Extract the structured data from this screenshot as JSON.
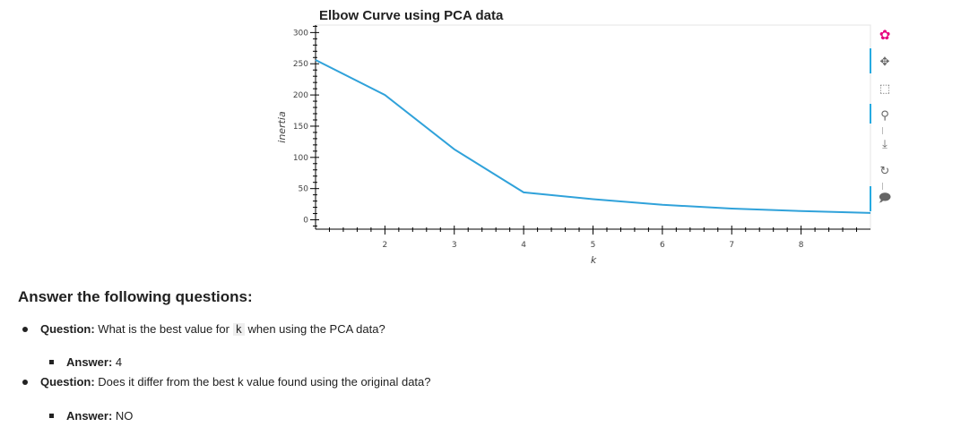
{
  "chart_data": {
    "type": "line",
    "title": "Elbow Curve using PCA data",
    "xlabel": "k",
    "ylabel": "inertia",
    "x": [
      1,
      2,
      3,
      4,
      5,
      6,
      7,
      8,
      9
    ],
    "y": [
      256,
      200,
      113,
      44,
      33,
      24,
      18,
      14,
      11
    ],
    "xlim": [
      1,
      9
    ],
    "ylim": [
      -15,
      312
    ],
    "x_ticks": [
      2,
      3,
      4,
      5,
      6,
      7,
      8
    ],
    "y_ticks": [
      0,
      50,
      100,
      150,
      200,
      250,
      300
    ],
    "grid": false,
    "line_color": "#30a2da"
  },
  "toolbar": {
    "tools": [
      {
        "name": "bokeh-logo-icon",
        "glyph": "✿"
      },
      {
        "name": "pan-icon",
        "glyph": "✥"
      },
      {
        "name": "box-zoom-icon",
        "glyph": "⬚"
      },
      {
        "name": "wheel-zoom-icon",
        "glyph": "⚲"
      },
      {
        "name": "save-icon",
        "glyph": "⤓"
      },
      {
        "name": "reset-icon",
        "glyph": "↻"
      },
      {
        "name": "hover-icon",
        "glyph": "🗩"
      }
    ]
  },
  "markdown": {
    "heading": "Answer the following questions:",
    "q1_label": "Question:",
    "q1_text_before": "What is the best value for",
    "q1_code": "k",
    "q1_text_after": "when using the PCA data?",
    "a1_label": "Answer:",
    "a1_value": "4",
    "q2_label": "Question:",
    "q2_text": "Does it differ from the best k value found using the original data?",
    "a2_label": "Answer:",
    "a2_value": "NO"
  }
}
